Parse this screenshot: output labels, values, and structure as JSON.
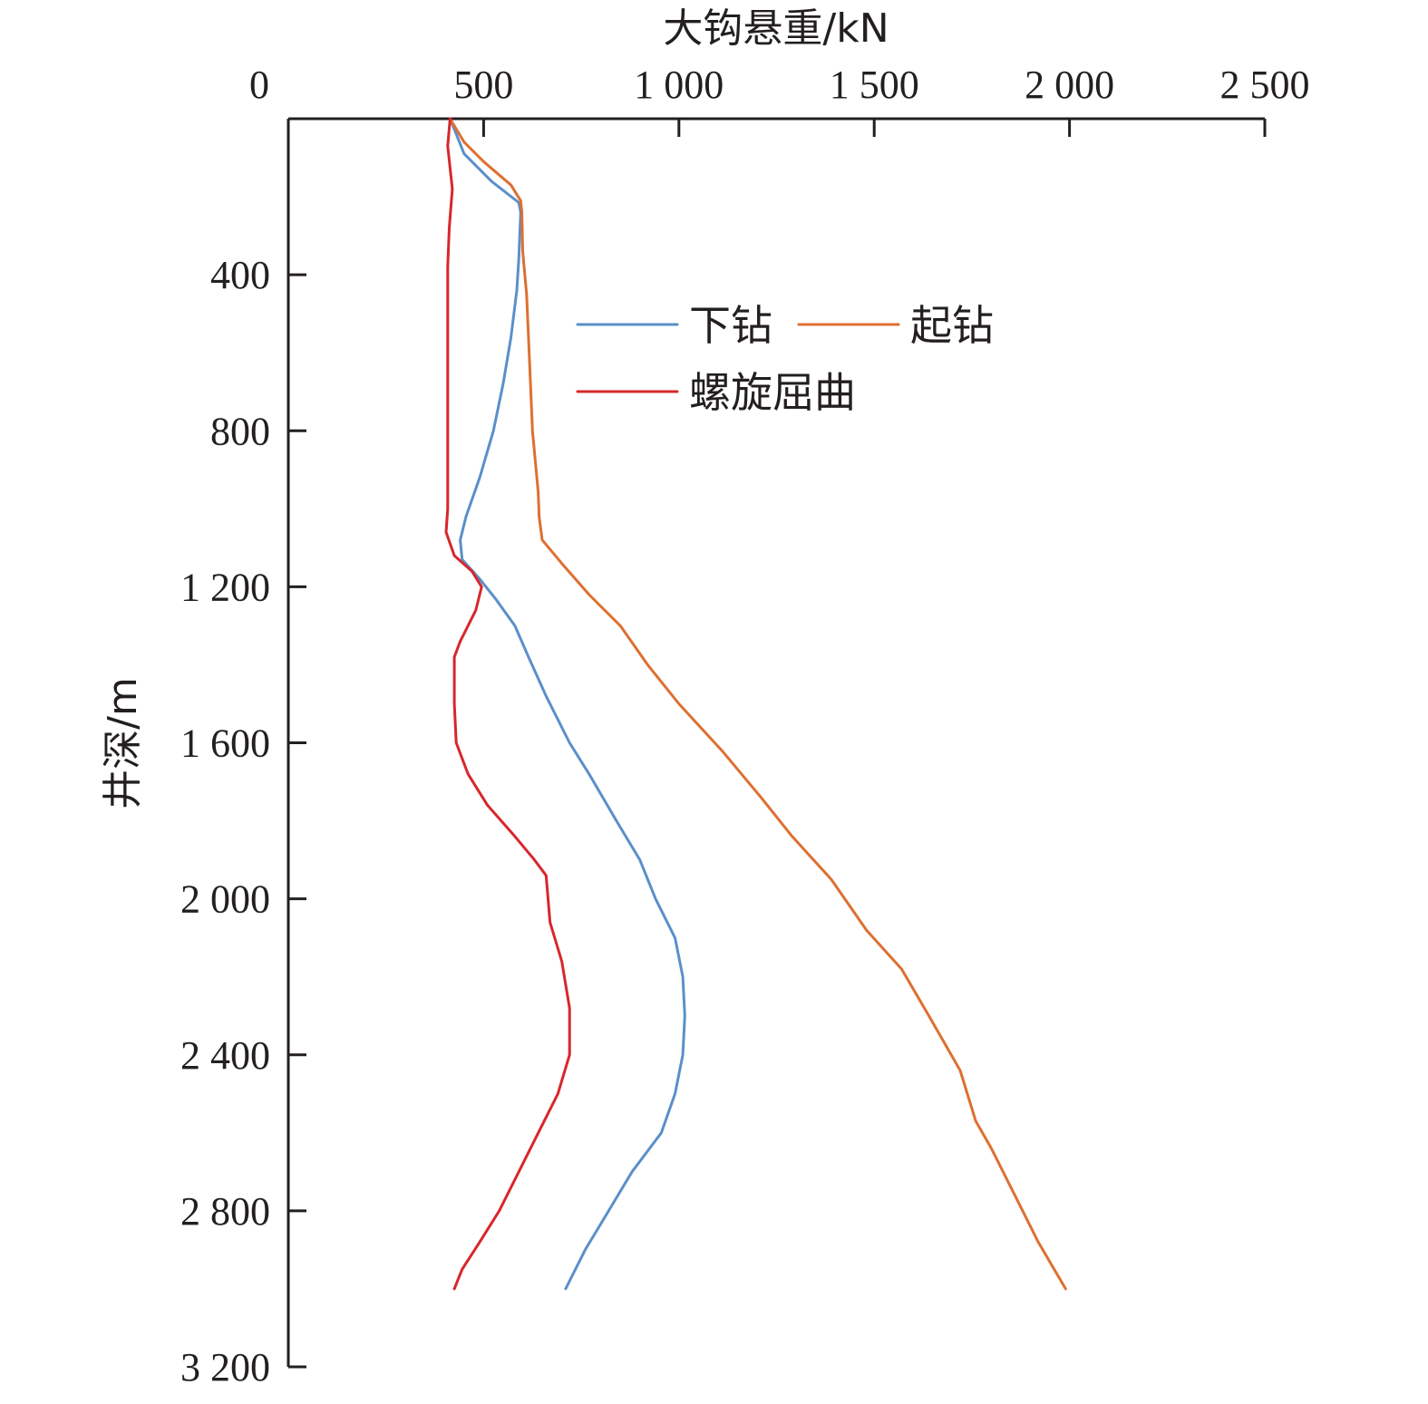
{
  "chart_data": {
    "type": "line",
    "title": "",
    "xlabel": "大钩悬重/kN",
    "ylabel": "井深/m",
    "xlim": [
      0,
      2500
    ],
    "ylim": [
      0,
      3200
    ],
    "y_inverted": true,
    "x_axis_position": "top",
    "x_ticks": [
      0,
      500,
      1000,
      1500,
      2000,
      2500
    ],
    "x_tick_labels": [
      "0",
      "500",
      "1 000",
      "1 500",
      "2 000",
      "2 500"
    ],
    "y_ticks": [
      400,
      800,
      1200,
      1600,
      2000,
      2400,
      2800,
      3200
    ],
    "y_tick_labels": [
      "400",
      "800",
      "1 200",
      "1 600",
      "2 000",
      "2 400",
      "2 800",
      "3 200"
    ],
    "grid": false,
    "legend_position": "upper-middle",
    "series": [
      {
        "name": "下钻",
        "color": "#5b8fc9",
        "points": [
          [
            414,
            0
          ],
          [
            450,
            90
          ],
          [
            520,
            160
          ],
          [
            590,
            215
          ],
          [
            595,
            240
          ],
          [
            590,
            360
          ],
          [
            585,
            440
          ],
          [
            570,
            560
          ],
          [
            550,
            680
          ],
          [
            525,
            800
          ],
          [
            490,
            920
          ],
          [
            455,
            1020
          ],
          [
            440,
            1080
          ],
          [
            445,
            1130
          ],
          [
            490,
            1180
          ],
          [
            530,
            1230
          ],
          [
            580,
            1300
          ],
          [
            615,
            1380
          ],
          [
            660,
            1480
          ],
          [
            720,
            1600
          ],
          [
            770,
            1680
          ],
          [
            840,
            1800
          ],
          [
            900,
            1900
          ],
          [
            940,
            2000
          ],
          [
            990,
            2100
          ],
          [
            1010,
            2200
          ],
          [
            1015,
            2300
          ],
          [
            1010,
            2400
          ],
          [
            990,
            2500
          ],
          [
            955,
            2600
          ],
          [
            880,
            2700
          ],
          [
            820,
            2800
          ],
          [
            760,
            2900
          ],
          [
            710,
            3000
          ]
        ]
      },
      {
        "name": "起钻",
        "color": "#dd7031",
        "points": [
          [
            414,
            0
          ],
          [
            450,
            60
          ],
          [
            500,
            110
          ],
          [
            570,
            170
          ],
          [
            595,
            210
          ],
          [
            598,
            240
          ],
          [
            600,
            340
          ],
          [
            610,
            450
          ],
          [
            615,
            560
          ],
          [
            620,
            680
          ],
          [
            625,
            800
          ],
          [
            640,
            960
          ],
          [
            642,
            1020
          ],
          [
            650,
            1080
          ],
          [
            700,
            1140
          ],
          [
            770,
            1220
          ],
          [
            850,
            1300
          ],
          [
            920,
            1400
          ],
          [
            1000,
            1500
          ],
          [
            1110,
            1620
          ],
          [
            1210,
            1740
          ],
          [
            1290,
            1840
          ],
          [
            1390,
            1950
          ],
          [
            1480,
            2080
          ],
          [
            1570,
            2180
          ],
          [
            1640,
            2300
          ],
          [
            1720,
            2440
          ],
          [
            1760,
            2570
          ],
          [
            1800,
            2640
          ],
          [
            1860,
            2760
          ],
          [
            1920,
            2880
          ],
          [
            1990,
            3000
          ]
        ]
      },
      {
        "name": "螺旋屈曲",
        "color": "#d7272c",
        "points": [
          [
            414,
            0
          ],
          [
            408,
            70
          ],
          [
            420,
            180
          ],
          [
            412,
            280
          ],
          [
            408,
            380
          ],
          [
            408,
            600
          ],
          [
            408,
            800
          ],
          [
            408,
            1000
          ],
          [
            404,
            1060
          ],
          [
            425,
            1120
          ],
          [
            470,
            1160
          ],
          [
            495,
            1200
          ],
          [
            480,
            1260
          ],
          [
            440,
            1340
          ],
          [
            425,
            1380
          ],
          [
            425,
            1500
          ],
          [
            430,
            1600
          ],
          [
            460,
            1680
          ],
          [
            510,
            1760
          ],
          [
            580,
            1840
          ],
          [
            630,
            1900
          ],
          [
            660,
            1940
          ],
          [
            665,
            2000
          ],
          [
            670,
            2060
          ],
          [
            700,
            2160
          ],
          [
            720,
            2280
          ],
          [
            720,
            2400
          ],
          [
            690,
            2500
          ],
          [
            640,
            2600
          ],
          [
            590,
            2700
          ],
          [
            540,
            2800
          ],
          [
            490,
            2880
          ],
          [
            445,
            2950
          ],
          [
            425,
            3000
          ]
        ]
      }
    ]
  }
}
